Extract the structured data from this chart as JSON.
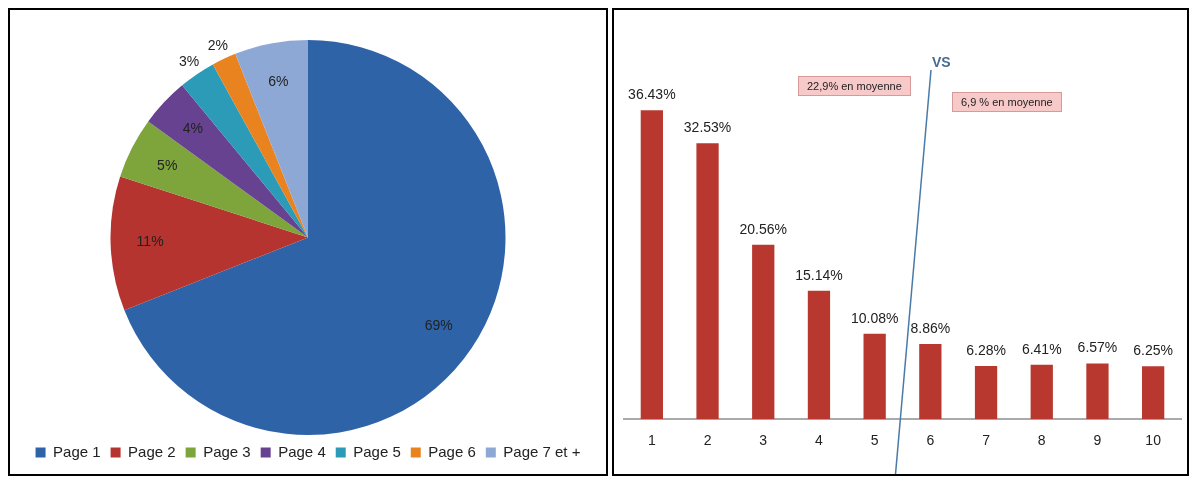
{
  "chart_data": [
    {
      "type": "pie",
      "categories": [
        "Page 1",
        "Page 2",
        "Page 3",
        "Page 4",
        "Page 5",
        "Page 6",
        "Page 7 et +"
      ],
      "values": [
        69,
        11,
        5,
        4,
        3,
        2,
        6
      ],
      "colors": [
        "#2f63a8",
        "#b5342f",
        "#7ea43c",
        "#674290",
        "#2b9bb8",
        "#e8831f",
        "#8ea8d6"
      ],
      "value_labels": [
        "69%",
        "11%",
        "5%",
        "4%",
        "3%",
        "2%",
        "6%"
      ],
      "legend": "bottom"
    },
    {
      "type": "bar",
      "categories": [
        "1",
        "2",
        "3",
        "4",
        "5",
        "6",
        "7",
        "8",
        "9",
        "10"
      ],
      "values": [
        36.43,
        32.53,
        20.56,
        15.14,
        10.08,
        8.86,
        6.28,
        6.41,
        6.57,
        6.25
      ],
      "color": "#b8382f",
      "value_labels": [
        "36.43%",
        "32.53%",
        "20.56%",
        "15.14%",
        "10.08%",
        "8.86%",
        "6.28%",
        "6.41%",
        "6.57%",
        "6.25%"
      ],
      "annotations": [
        "VS",
        "22,9% en moyenne",
        "6,9 % en moyenne"
      ],
      "tick_labels": "x",
      "grid": false,
      "legend": false
    }
  ]
}
